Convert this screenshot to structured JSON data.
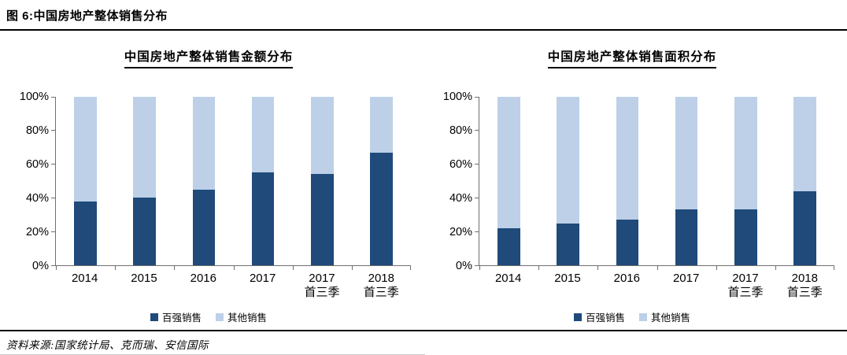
{
  "figure": {
    "label": "图 6:中国房地产整体销售分布",
    "source": "资料来源:国家统计局、克而瑞、安信国际"
  },
  "colors": {
    "primary": "#1F4A7A",
    "secondary": "#BDD0E8",
    "axis": "#6F6F6F"
  },
  "chart_data": [
    {
      "type": "bar",
      "stacked": true,
      "title": "中国房地产整体销售金额分布",
      "categories": [
        "2014",
        "2015",
        "2016",
        "2017",
        "2017\n首三季",
        "2018\n首三季"
      ],
      "series": [
        {
          "name": "百强销售",
          "color": "#1F4A7A",
          "values": [
            38,
            40,
            45,
            55,
            54,
            67
          ]
        },
        {
          "name": "其他销售",
          "color": "#BDD0E8",
          "values": [
            62,
            60,
            55,
            45,
            46,
            33
          ]
        }
      ],
      "ylabel": "",
      "ylim": [
        0,
        100
      ],
      "yticks": [
        "100%",
        "80%",
        "60%",
        "40%",
        "20%",
        "0%"
      ],
      "grid": false,
      "legend_position": "bottom"
    },
    {
      "type": "bar",
      "stacked": true,
      "title": "中国房地产整体销售面积分布",
      "categories": [
        "2014",
        "2015",
        "2016",
        "2017",
        "2017\n首三季",
        "2018\n首三季"
      ],
      "series": [
        {
          "name": "百强销售",
          "color": "#1F4A7A",
          "values": [
            22,
            25,
            27,
            33,
            33,
            44
          ]
        },
        {
          "name": "其他销售",
          "color": "#BDD0E8",
          "values": [
            78,
            75,
            73,
            67,
            67,
            56
          ]
        }
      ],
      "ylabel": "",
      "ylim": [
        0,
        100
      ],
      "yticks": [
        "100%",
        "80%",
        "60%",
        "40%",
        "20%",
        "0%"
      ],
      "grid": false,
      "legend_position": "bottom"
    }
  ]
}
